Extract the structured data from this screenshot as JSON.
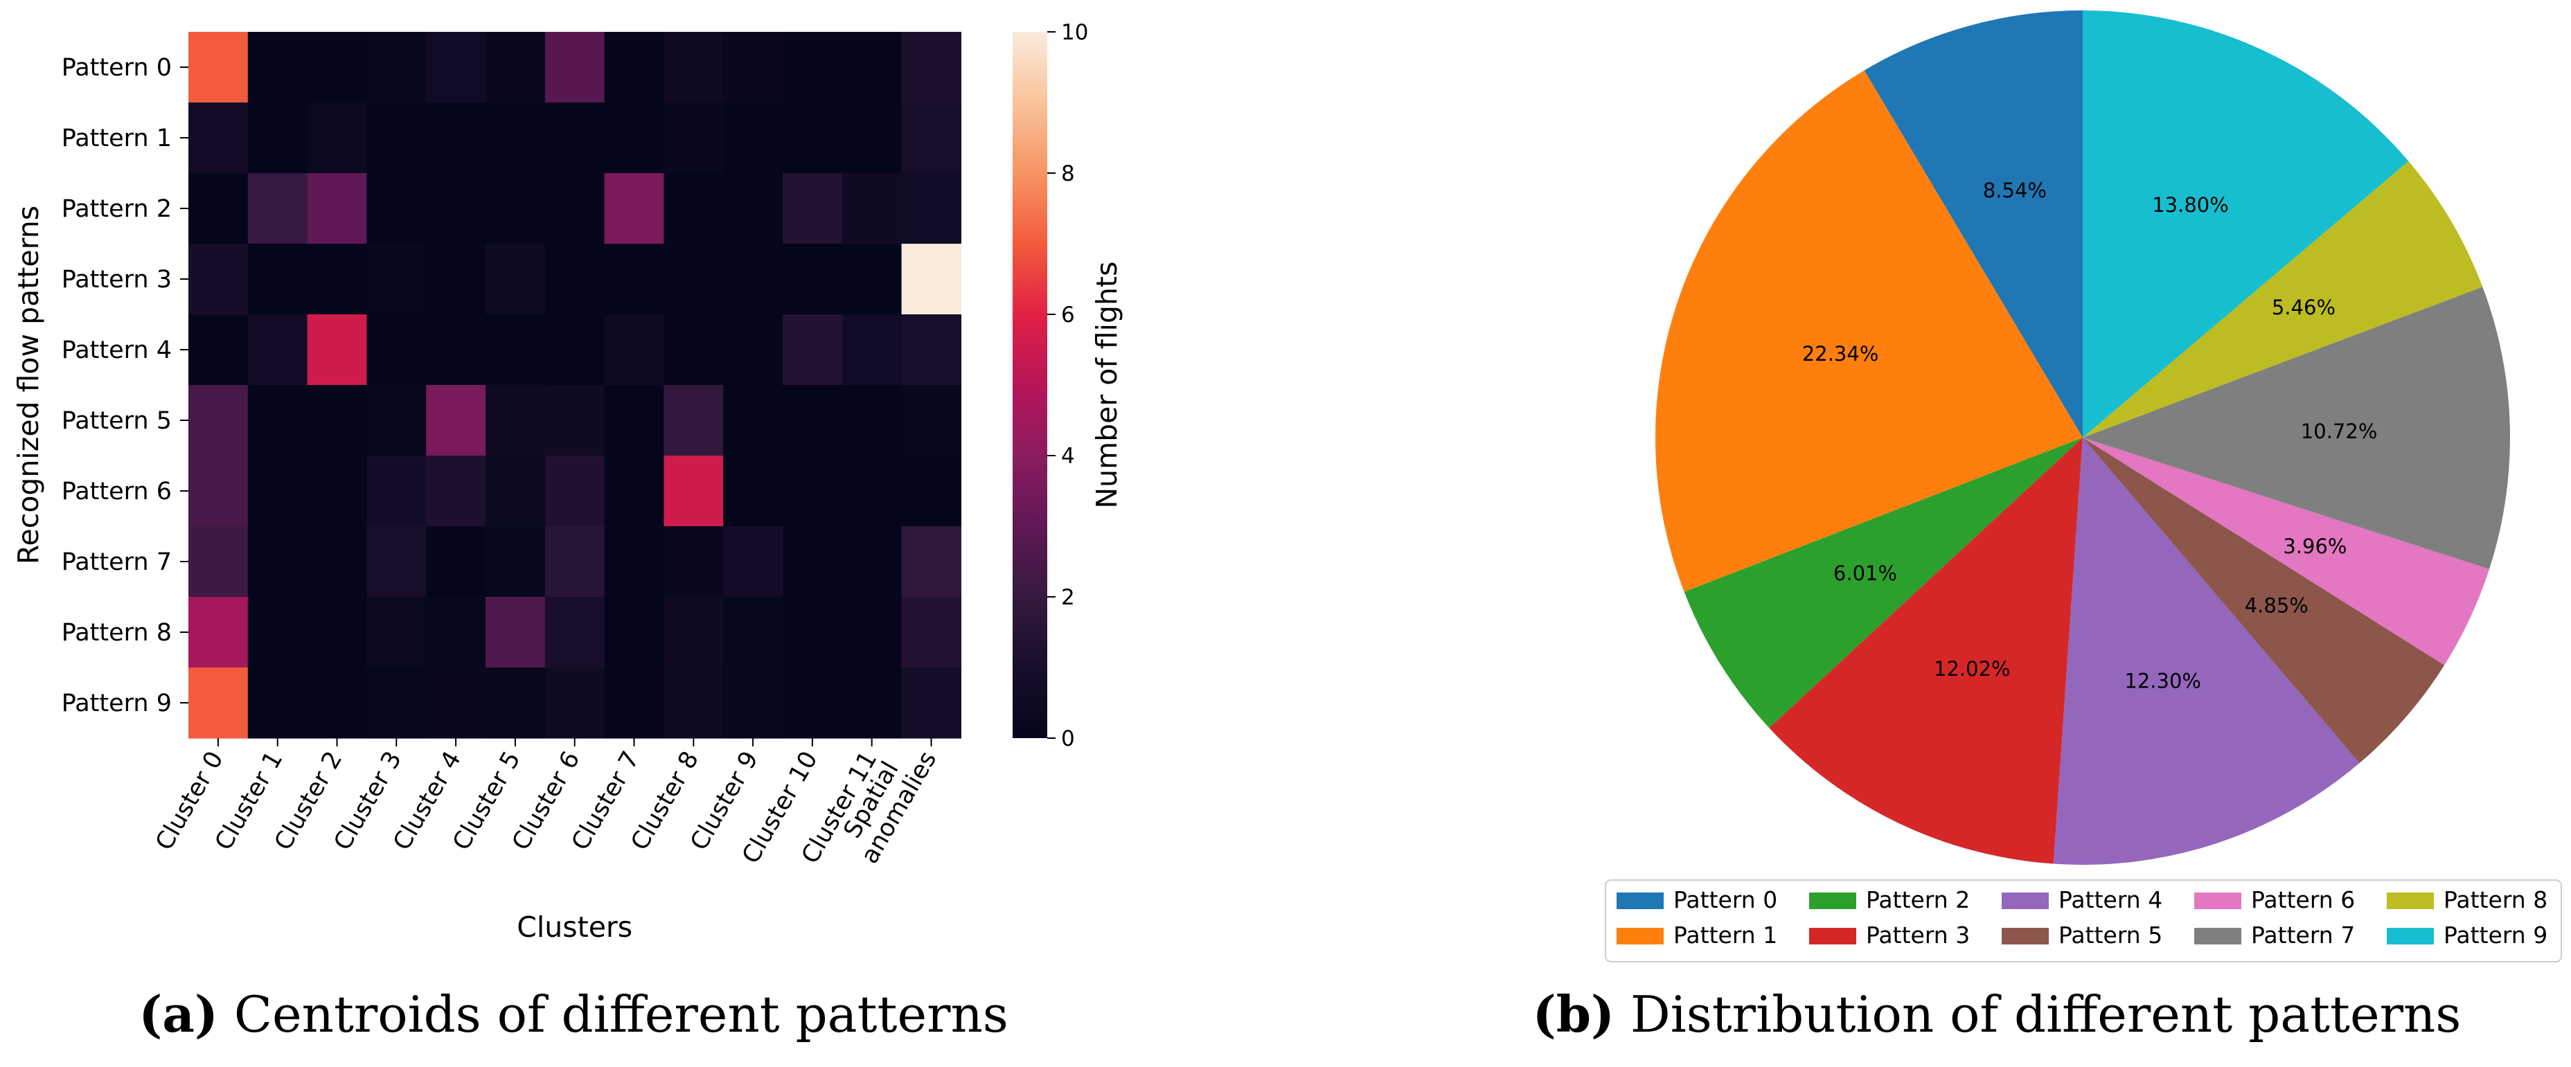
{
  "chart_data": [
    {
      "type": "heatmap",
      "row_labels": [
        "Pattern 0",
        "Pattern 1",
        "Pattern 2",
        "Pattern 3",
        "Pattern 4",
        "Pattern 5",
        "Pattern 6",
        "Pattern 7",
        "Pattern 8",
        "Pattern 9"
      ],
      "column_labels": [
        "Cluster 0",
        "Cluster 1",
        "Cluster 2",
        "Cluster 3",
        "Cluster 4",
        "Cluster 5",
        "Cluster 6",
        "Cluster 7",
        "Cluster 8",
        "Cluster 9",
        "Cluster 10",
        "Cluster 11",
        "Spatial\nanomalies"
      ],
      "values": [
        [
          7.0,
          0.1,
          0.1,
          0.2,
          0.7,
          0.3,
          2.8,
          0.1,
          0.6,
          0.3,
          0.1,
          0.1,
          1.2
        ],
        [
          0.8,
          0.1,
          0.4,
          0.1,
          0.1,
          0.1,
          0.1,
          0.1,
          0.3,
          0.1,
          0.1,
          0.1,
          1.0
        ],
        [
          0.1,
          2.0,
          3.0,
          0.1,
          0.1,
          0.1,
          0.1,
          3.6,
          0.1,
          0.1,
          1.4,
          0.6,
          0.7
        ],
        [
          0.9,
          0.1,
          0.1,
          0.2,
          0.1,
          0.5,
          0.1,
          0.1,
          0.1,
          0.1,
          0.1,
          0.1,
          10.0
        ],
        [
          0.1,
          0.8,
          5.6,
          0.1,
          0.1,
          0.1,
          0.1,
          0.5,
          0.1,
          0.1,
          1.4,
          0.7,
          1.0
        ],
        [
          2.4,
          0.1,
          0.1,
          0.2,
          3.6,
          0.5,
          0.6,
          0.1,
          1.9,
          0.1,
          0.1,
          0.1,
          0.2
        ],
        [
          2.4,
          0.1,
          0.1,
          0.8,
          1.2,
          0.4,
          1.3,
          0.1,
          5.6,
          0.1,
          0.1,
          0.1,
          0.1
        ],
        [
          2.2,
          0.1,
          0.1,
          1.0,
          0.1,
          0.2,
          1.6,
          0.1,
          0.3,
          0.8,
          0.1,
          0.1,
          1.8
        ],
        [
          4.6,
          0.1,
          0.1,
          0.4,
          0.2,
          2.6,
          1.0,
          0.1,
          0.6,
          0.2,
          0.1,
          0.1,
          1.4
        ],
        [
          7.0,
          0.1,
          0.1,
          0.2,
          0.3,
          0.2,
          0.6,
          0.1,
          0.5,
          0.2,
          0.1,
          0.1,
          0.9
        ]
      ],
      "xlabel": "Clusters",
      "ylabel": "Recognized flow patterns",
      "colorbar": {
        "label": "Number of flights",
        "ticks": [
          0,
          2,
          4,
          6,
          8,
          10
        ],
        "range": [
          0,
          10
        ]
      },
      "caption_bold": "(a)",
      "caption_text": " Centroids of different patterns"
    },
    {
      "type": "pie",
      "labels": [
        "Pattern 0",
        "Pattern 1",
        "Pattern 2",
        "Pattern 3",
        "Pattern 4",
        "Pattern 5",
        "Pattern 6",
        "Pattern 7",
        "Pattern 8",
        "Pattern 9"
      ],
      "values": [
        8.54,
        22.34,
        6.01,
        12.02,
        12.3,
        4.85,
        3.96,
        10.72,
        5.46,
        13.8
      ],
      "pct_labels": [
        "8.54%",
        "22.34%",
        "6.01%",
        "12.02%",
        "12.30%",
        "4.85%",
        "3.96%",
        "10.72%",
        "5.46%",
        "13.80%"
      ],
      "colors": [
        "#1f77b4",
        "#ff7f0e",
        "#2ca02c",
        "#d62728",
        "#9467bd",
        "#8c564b",
        "#e377c2",
        "#7f7f7f",
        "#bcbd22",
        "#17becf"
      ],
      "start": "top, counter-clockwise",
      "legend": "bottom, 5 columns",
      "caption_bold": "(b)",
      "caption_text": " Distribution of different patterns"
    }
  ]
}
